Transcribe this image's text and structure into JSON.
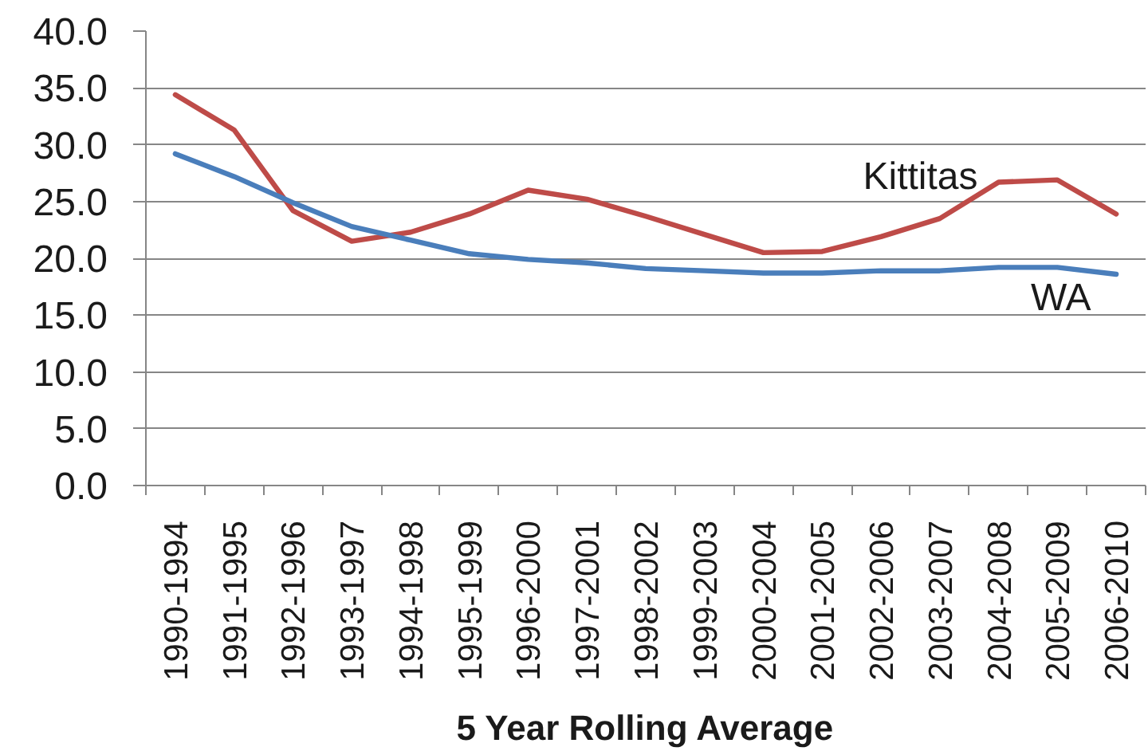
{
  "chart_data": {
    "type": "line",
    "xlabel": "5 Year Rolling Average",
    "categories": [
      "1990-1994",
      "1991-1995",
      "1992-1996",
      "1993-1997",
      "1994-1998",
      "1995-1999",
      "1996-2000",
      "1997-2001",
      "1998-2002",
      "1999-2003",
      "2000-2004",
      "2001-2005",
      "2002-2006",
      "2003-2007",
      "2004-2008",
      "2005-2009",
      "2006-2010"
    ],
    "series": [
      {
        "name": "Kittitas",
        "color": "#be4b48",
        "values": [
          34.4,
          31.3,
          24.2,
          21.5,
          22.3,
          23.9,
          26.0,
          25.2,
          23.7,
          22.1,
          20.5,
          20.6,
          21.9,
          23.5,
          26.7,
          26.9,
          23.9
        ]
      },
      {
        "name": "WA",
        "color": "#4a7ebb",
        "values": [
          29.2,
          27.2,
          24.9,
          22.8,
          21.6,
          20.4,
          19.9,
          19.6,
          19.1,
          18.9,
          18.7,
          18.7,
          18.9,
          18.9,
          19.2,
          19.2,
          18.6
        ]
      }
    ],
    "ylim": [
      0,
      40
    ],
    "yticks": [
      {
        "value": 0,
        "label": "0.0"
      },
      {
        "value": 5,
        "label": "5.0"
      },
      {
        "value": 10,
        "label": "10.0"
      },
      {
        "value": 15,
        "label": "15.0"
      },
      {
        "value": 20,
        "label": "20.0"
      },
      {
        "value": 25,
        "label": "25.0"
      },
      {
        "value": 30,
        "label": "30.0"
      },
      {
        "value": 35,
        "label": "35.0"
      },
      {
        "value": 40,
        "label": "40.0"
      }
    ],
    "grid": "y"
  }
}
